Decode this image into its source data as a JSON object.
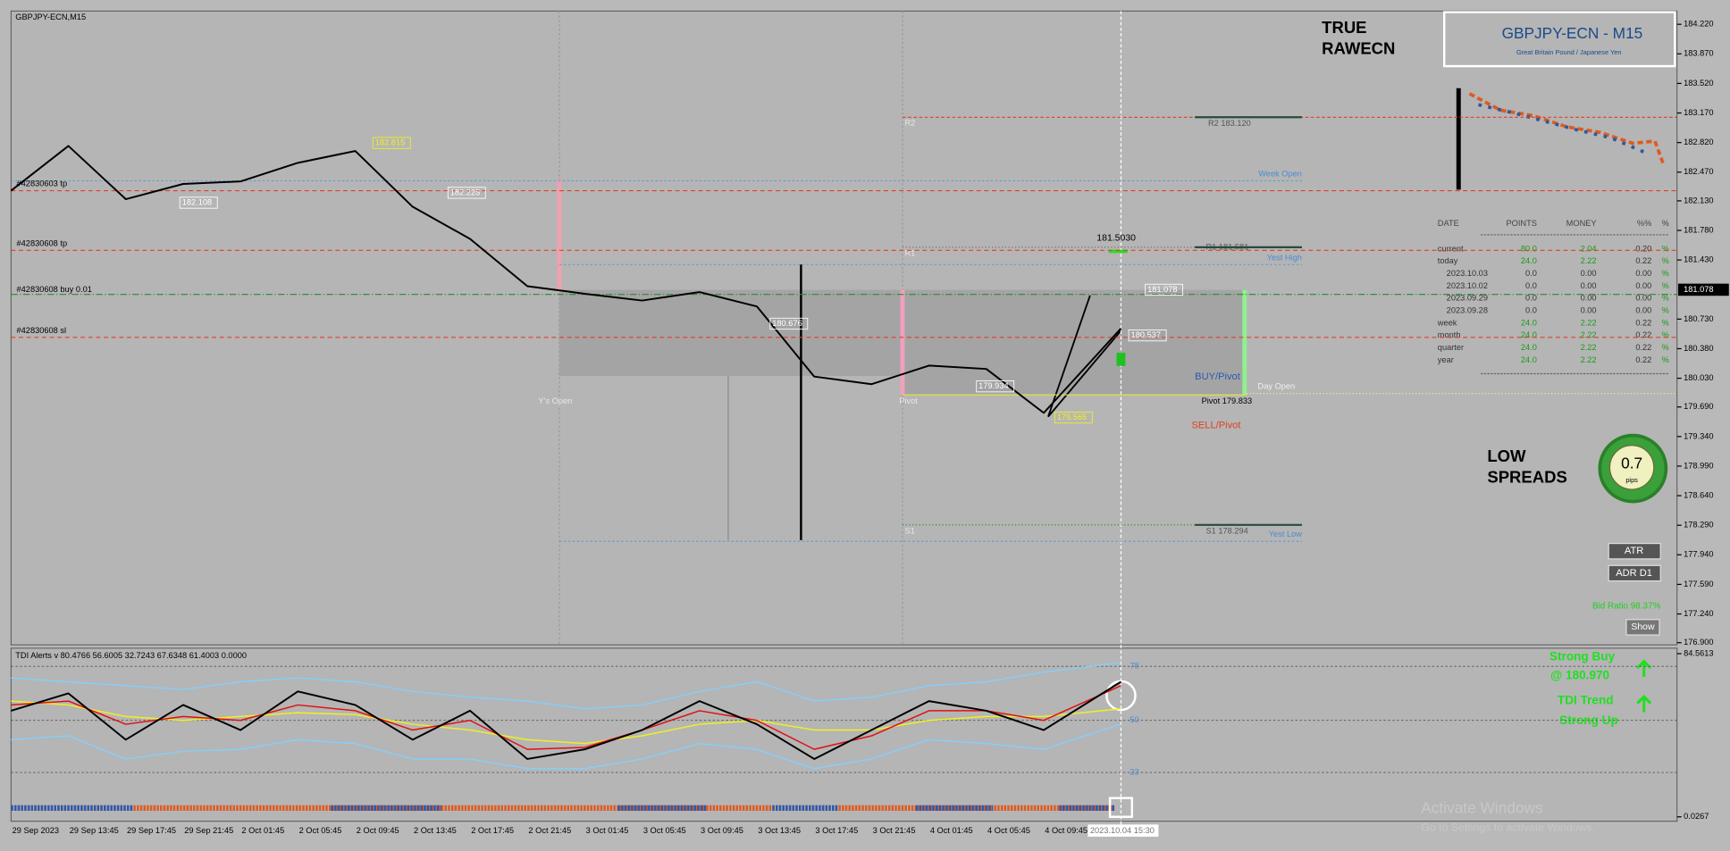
{
  "chart_data": [
    {
      "type": "line",
      "title": "GBPJPY-ECN,M15",
      "categories": [
        "29 Sep 2023",
        "29 Sep 13:45",
        "29 Sep 17:45",
        "29 Sep 21:45",
        "2 Oct 01:45",
        "2 Oct 05:45",
        "2 Oct 09:45",
        "2 Oct 13:45",
        "2 Oct 17:45",
        "2 Oct 21:45",
        "3 Oct 01:45",
        "3 Oct 05:45",
        "3 Oct 09:45",
        "3 Oct 13:45",
        "3 Oct 17:45",
        "3 Oct 21:45",
        "4 Oct 01:45",
        "4 Oct 05:45",
        "4 Oct 09:45",
        "2023.10.04 15:30"
      ],
      "series": [
        {
          "color": "#000000",
          "values": [
            182.25,
            182.78,
            182.15,
            182.33,
            182.36,
            182.58,
            182.72,
            182.06,
            181.68,
            181.12,
            181.03,
            180.95,
            181.05,
            180.88,
            180.05,
            179.96,
            180.18,
            180.14,
            179.62,
            180.62
          ]
        }
      ],
      "ylim": [
        176.874,
        184.377
      ],
      "yticks": [
        {
          "value": 184.22,
          "label": "184.220"
        },
        {
          "value": 183.87,
          "label": "183.870"
        },
        {
          "value": 183.52,
          "label": "183.520"
        },
        {
          "value": 183.17,
          "label": "183.170"
        },
        {
          "value": 182.82,
          "label": "182.820"
        },
        {
          "value": 182.47,
          "label": "182.470"
        },
        {
          "value": 182.13,
          "label": "182.130"
        },
        {
          "value": 181.78,
          "label": "181.780"
        },
        {
          "value": 181.43,
          "label": "181.430"
        },
        {
          "value": 180.73,
          "label": "180.730"
        },
        {
          "value": 180.38,
          "label": "180.380"
        },
        {
          "value": 180.03,
          "label": "180.030"
        },
        {
          "value": 179.69,
          "label": "179.690"
        },
        {
          "value": 179.34,
          "label": "179.340"
        },
        {
          "value": 178.99,
          "label": "178.990"
        },
        {
          "value": 178.64,
          "label": "178.640"
        },
        {
          "value": 178.29,
          "label": "178.290"
        },
        {
          "value": 177.94,
          "label": "177.940"
        },
        {
          "value": 177.59,
          "label": "177.590"
        },
        {
          "value": 177.24,
          "label": "177.240"
        },
        {
          "value": 176.9,
          "label": "176.900"
        }
      ],
      "current_price": {
        "value": 181.078,
        "label": "181.078"
      },
      "levels": [
        {
          "value": 183.12,
          "label": "R2 183.120",
          "color": "#e0402a"
        },
        {
          "value": 182.367,
          "label": "Week Open",
          "color": "#5a9bd5"
        },
        {
          "value": 182.25,
          "label": "#42830603 tp",
          "color": "#e0402a"
        },
        {
          "value": 181.545,
          "label": "#42830608 tp",
          "color": "#e0402a"
        },
        {
          "value": 181.581,
          "label": "R1 181.581",
          "color": "#6a6a6a"
        },
        {
          "value": 181.376,
          "label": "Yest High",
          "color": "#5a9bd5"
        },
        {
          "value": 181.023,
          "label": "#42830608 buy 0.01",
          "color": "#2a8a2a"
        },
        {
          "value": 180.514,
          "label": "#42830608 sl",
          "color": "#e0402a"
        },
        {
          "value": 179.833,
          "label": "Pivot 179.833",
          "color": "#e8e830"
        },
        {
          "value": 179.849,
          "label": "Day Open",
          "color": "#f0f0a0"
        },
        {
          "value": 178.294,
          "label": "S1 178.294",
          "color": "#2a8a2a"
        },
        {
          "value": 178.1,
          "label": "Yest Low",
          "color": "#5a9bd5"
        }
      ],
      "annotations": [
        {
          "value": 182.815,
          "label": "182.815",
          "color": "#f0f020"
        },
        {
          "value": 182.108,
          "label": "182.108",
          "color": "#ffffff"
        },
        {
          "value": 182.225,
          "label": "182.225",
          "color": "#ffffff"
        },
        {
          "value": 180.676,
          "label": "180.676",
          "color": "#ffffff"
        },
        {
          "value": 179.934,
          "label": "179.934",
          "color": "#ffffff"
        },
        {
          "value": 179.565,
          "label": "179.565",
          "color": "#f0f020"
        },
        {
          "value": 180.537,
          "label": "180.537",
          "color": "#ffffff"
        },
        {
          "value": 181.078,
          "label": "181.078",
          "color": "#ffffff"
        }
      ],
      "notes": [
        "Y's Open",
        "Pivot",
        "R2",
        "R1",
        "S1",
        "BUY/Pivot",
        "SELL/Pivot",
        "181.5030"
      ]
    },
    {
      "type": "line",
      "title": "TDI Alerts v 80.4766 56.6005 32.7243 67.6348 61.4003 0.0000",
      "series": [
        {
          "color": "#87cefa",
          "values": [
            72,
            70,
            68,
            66,
            70,
            72,
            70,
            65,
            62,
            60,
            56,
            58,
            65,
            70,
            60,
            62,
            68,
            70,
            75,
            80
          ]
        },
        {
          "color": "#87cefa",
          "values": [
            40,
            42,
            30,
            34,
            35,
            40,
            38,
            30,
            30,
            25,
            25,
            30,
            38,
            35,
            25,
            30,
            40,
            38,
            35,
            48
          ]
        },
        {
          "color": "#f0f020",
          "values": [
            60,
            58,
            52,
            50,
            52,
            54,
            53,
            48,
            45,
            40,
            38,
            42,
            48,
            50,
            45,
            45,
            50,
            52,
            52,
            56
          ]
        },
        {
          "color": "#e01010",
          "values": [
            58,
            60,
            48,
            52,
            50,
            58,
            55,
            45,
            50,
            35,
            36,
            45,
            55,
            50,
            35,
            42,
            55,
            55,
            50,
            68
          ]
        },
        {
          "color": "#000000",
          "values": [
            55,
            64,
            40,
            58,
            45,
            65,
            58,
            40,
            55,
            30,
            35,
            45,
            60,
            48,
            30,
            45,
            60,
            55,
            45,
            70
          ]
        }
      ],
      "ylim": [
        0.0267,
        84.5613
      ],
      "yticks": [
        {
          "value": 0.0267,
          "label": "0.0267"
        },
        84.5613
      ],
      "levels": [
        23,
        50,
        78
      ]
    }
  ],
  "overlay": {
    "brand": [
      "TRUE",
      "RAWECN"
    ],
    "symbol_box": {
      "title": "GBPJPY-ECN - M15",
      "subtitle": "Great Britain Pound / Japanese Yen"
    },
    "stats_table": {
      "header": [
        "DATE",
        "POINTS",
        "MONEY",
        "%%",
        "%"
      ],
      "rows": [
        [
          "current",
          "80.0",
          "2.04",
          "0.20",
          "%"
        ],
        [
          "today",
          "24.0",
          "2.22",
          "0.22",
          "%"
        ],
        [
          "2023.10.03",
          "0.0",
          "0.00",
          "0.00",
          "%"
        ],
        [
          "2023.10.02",
          "0.0",
          "0.00",
          "0.00",
          "%"
        ],
        [
          "2023.09.29",
          "0.0",
          "0.00",
          "0.00",
          "%"
        ],
        [
          "2023.09.28",
          "0.0",
          "0.00",
          "0.00",
          "%"
        ],
        [
          "week",
          "24.0",
          "2.22",
          "0.22",
          "%"
        ],
        [
          "month",
          "24.0",
          "2.22",
          "0.22",
          "%"
        ],
        [
          "quarter",
          "24.0",
          "2.22",
          "0.22",
          "%"
        ],
        [
          "year",
          "24.0",
          "2.22",
          "0.22",
          "%"
        ]
      ]
    },
    "spreads": {
      "label": [
        "LOW",
        "SPREADS"
      ],
      "value": "0.7",
      "unit": "pips"
    },
    "buttons": [
      "ATR",
      "ADR D1",
      "Show"
    ],
    "bid_ratio": "Bid Ratio 98.37%",
    "signals": [
      "Strong Buy",
      "@ 180.970",
      "TDI Trend",
      "Strong Up"
    ],
    "watermark": [
      "Activate Windows",
      "Go to Settings to activate Windows."
    ]
  }
}
